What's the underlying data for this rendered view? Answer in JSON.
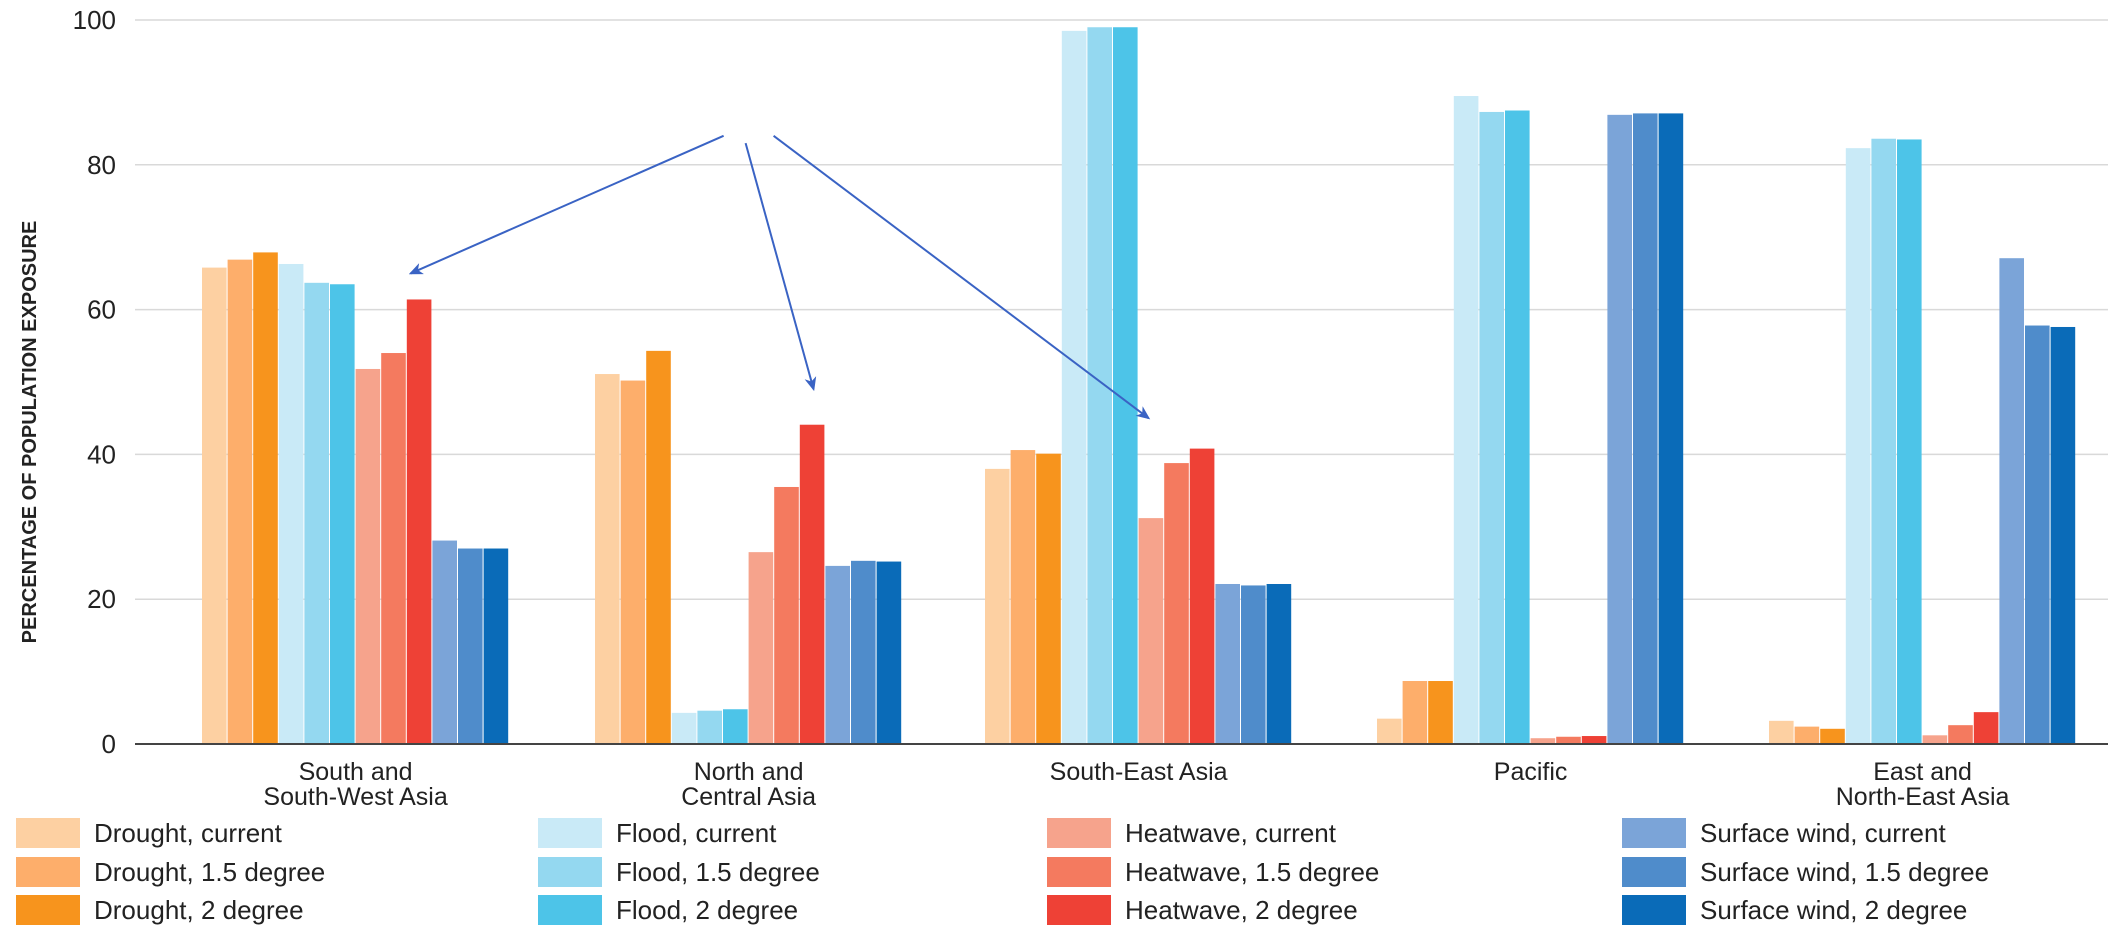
{
  "chart_data": {
    "type": "bar",
    "ylabel": "PERCENTAGE OF POPULATION EXPOSURE",
    "xlabel": "",
    "ylim": [
      0,
      100
    ],
    "yticks": [
      "0",
      "20",
      "40",
      "60",
      "80",
      "100"
    ],
    "grid": "horizontal",
    "legend_position": "bottom",
    "categories": [
      [
        "South and",
        "South-West Asia"
      ],
      [
        "North and",
        "Central Asia"
      ],
      [
        "South-East Asia"
      ],
      [
        "Pacific"
      ],
      [
        "East and",
        "North-East Asia"
      ]
    ],
    "series": [
      {
        "name": "Drought, current",
        "color": "#FDD0A2",
        "values": [
          65.8,
          51.1,
          38.0,
          3.5,
          3.2
        ]
      },
      {
        "name": "Drought, 1.5 degree",
        "color": "#FDAE6B",
        "values": [
          66.9,
          50.2,
          40.6,
          8.7,
          2.4
        ]
      },
      {
        "name": "Drought, 2 degree",
        "color": "#F7941D",
        "values": [
          67.9,
          54.3,
          40.1,
          8.7,
          2.1
        ]
      },
      {
        "name": "Flood, current",
        "color": "#C9EAF7",
        "values": [
          66.3,
          4.3,
          98.5,
          89.5,
          82.3
        ]
      },
      {
        "name": "Flood, 1.5 degree",
        "color": "#94D8F0",
        "values": [
          63.7,
          4.6,
          99.0,
          87.3,
          83.6
        ]
      },
      {
        "name": "Flood, 2 degree",
        "color": "#4DC4E8",
        "values": [
          63.5,
          4.8,
          99.0,
          87.5,
          83.5
        ]
      },
      {
        "name": "Heatwave, current",
        "color": "#F6A38C",
        "values": [
          51.8,
          26.5,
          31.2,
          0.8,
          1.2
        ]
      },
      {
        "name": "Heatwave, 1.5 degree",
        "color": "#F47A5F",
        "values": [
          54.0,
          35.5,
          38.8,
          1.0,
          2.6
        ]
      },
      {
        "name": "Heatwave, 2 degree",
        "color": "#EE4136",
        "values": [
          61.4,
          44.1,
          40.8,
          1.1,
          4.4
        ]
      },
      {
        "name": "Surface wind, current",
        "color": "#7BA4D8",
        "values": [
          28.1,
          24.6,
          22.1,
          86.9,
          67.1
        ]
      },
      {
        "name": "Surface wind, 1.5 degree",
        "color": "#4F8CCB",
        "values": [
          27.0,
          25.3,
          21.9,
          87.1,
          57.8
        ]
      },
      {
        "name": "Surface wind, 2 degree",
        "color": "#0A6BB8",
        "values": [
          27.0,
          25.2,
          22.1,
          87.1,
          57.6
        ]
      }
    ],
    "annotations": {
      "arrow_color": "#3A63C4",
      "arrows": [
        {
          "from_category": 1,
          "from_value": 84,
          "to_category": 0,
          "to_value": 65
        },
        {
          "from_category": 1,
          "from_value": 83,
          "to_category": 1,
          "to_value": 49
        },
        {
          "from_category": 1,
          "from_value": 84,
          "to_category": 2,
          "to_value": 45
        }
      ]
    }
  }
}
